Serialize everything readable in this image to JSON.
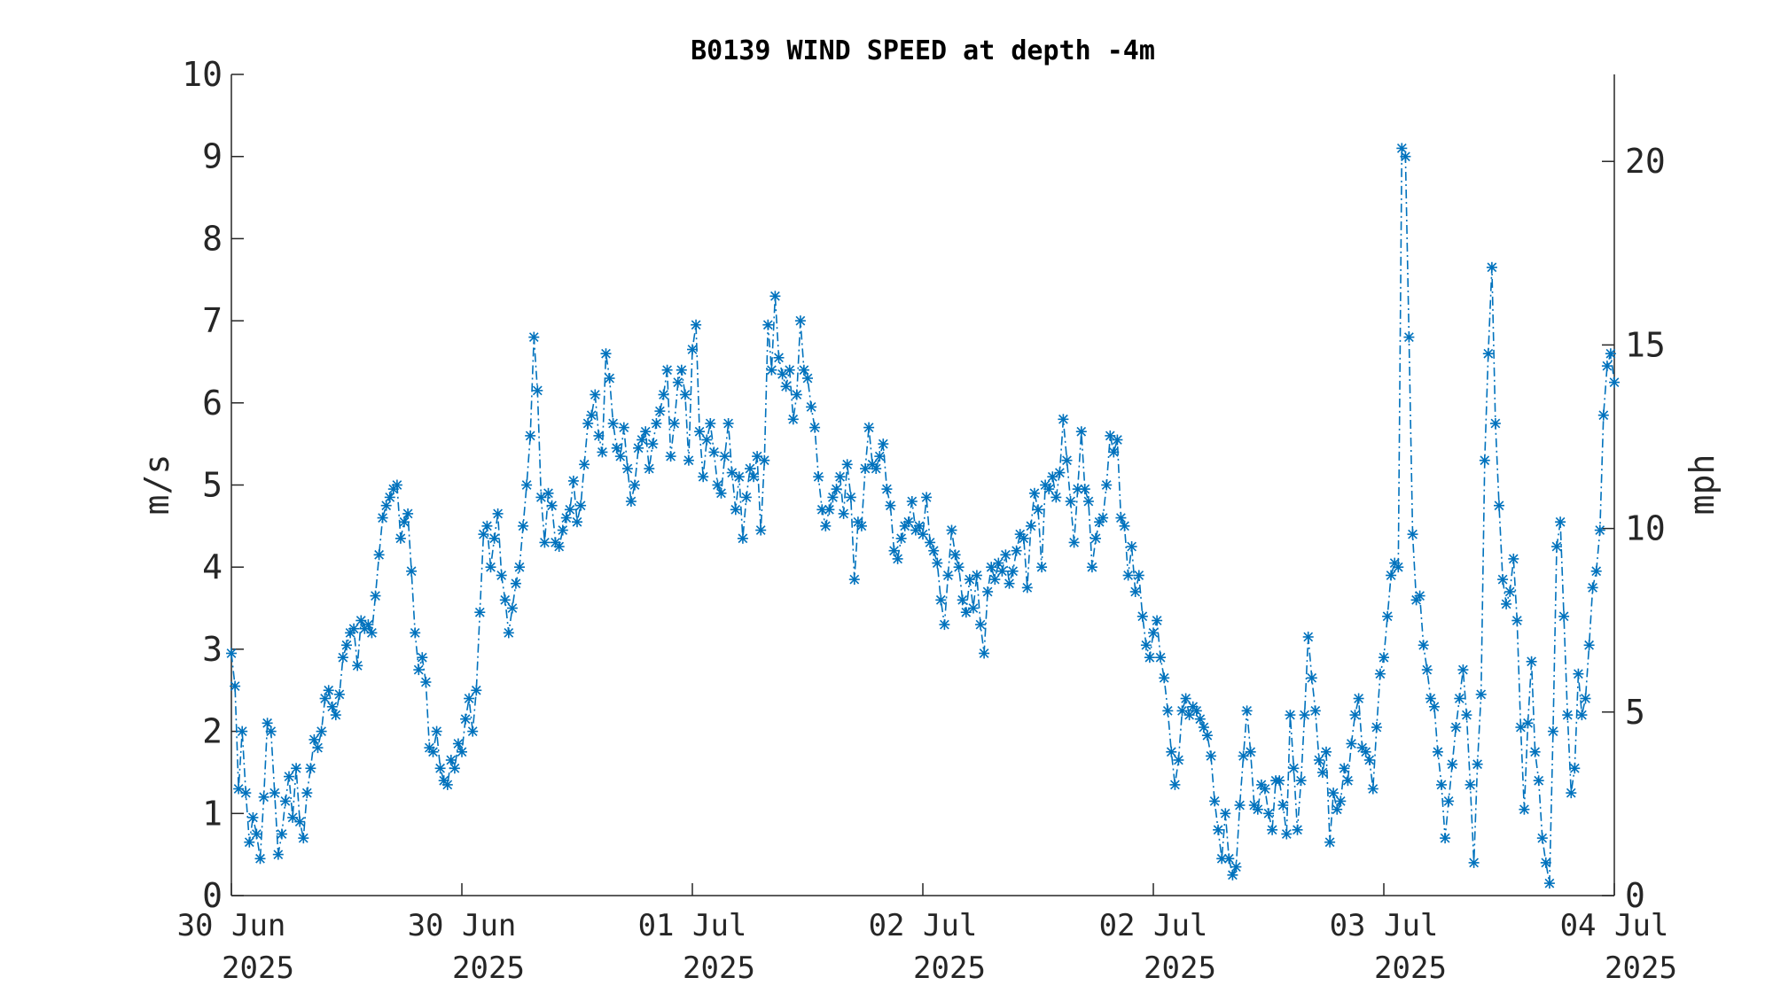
{
  "colors": {
    "series": "#0072BD",
    "axis": "#262626",
    "background": "#ffffff"
  },
  "chart_data": {
    "type": "line",
    "title": "B0139 WIND SPEED at depth -4m",
    "xlabel": "",
    "ylabel": "m/s",
    "y2label": "mph",
    "ylim": [
      0,
      10
    ],
    "y2lim": [
      0,
      22.37
    ],
    "yticks": [
      0,
      1,
      2,
      3,
      4,
      5,
      6,
      7,
      8,
      9,
      10
    ],
    "y2ticks": [
      0,
      5,
      10,
      15,
      20
    ],
    "xlim_days": [
      0,
      6
    ],
    "grid": false,
    "legend": "none",
    "marker": "asterisk",
    "line_style": "dash-dot",
    "x_ticks": [
      {
        "pos": 0,
        "line1": "30 Jun",
        "line2": "2025"
      },
      {
        "pos": 1,
        "line1": "30 Jun",
        "line2": "2025"
      },
      {
        "pos": 2,
        "line1": "01 Jul",
        "line2": "2025"
      },
      {
        "pos": 3,
        "line1": "02 Jul",
        "line2": "2025"
      },
      {
        "pos": 4,
        "line1": "02 Jul",
        "line2": "2025"
      },
      {
        "pos": 5,
        "line1": "03 Jul",
        "line2": "2025"
      },
      {
        "pos": 6,
        "line1": "04 Jul",
        "line2": "2025"
      }
    ],
    "series": [
      {
        "x_start": 0,
        "x_end": 6,
        "values": [
          2.95,
          2.55,
          1.3,
          2.0,
          1.25,
          0.65,
          0.95,
          0.75,
          0.45,
          1.2,
          2.1,
          2.0,
          1.25,
          0.5,
          0.75,
          1.15,
          1.45,
          0.95,
          1.55,
          0.9,
          0.7,
          1.25,
          1.55,
          1.9,
          1.8,
          2.0,
          2.4,
          2.5,
          2.3,
          2.2,
          2.45,
          2.9,
          3.05,
          3.2,
          3.25,
          2.8,
          3.35,
          3.25,
          3.3,
          3.2,
          3.65,
          4.15,
          4.6,
          4.75,
          4.85,
          4.95,
          5.0,
          4.35,
          4.55,
          4.65,
          3.95,
          3.2,
          2.75,
          2.9,
          2.6,
          1.8,
          1.75,
          2.0,
          1.55,
          1.4,
          1.35,
          1.65,
          1.55,
          1.85,
          1.75,
          2.15,
          2.4,
          2.0,
          2.5,
          3.45,
          4.4,
          4.5,
          4.0,
          4.35,
          4.65,
          3.9,
          3.6,
          3.2,
          3.5,
          3.8,
          4.0,
          4.5,
          5.0,
          5.6,
          6.8,
          6.15,
          4.85,
          4.3,
          4.9,
          4.75,
          4.3,
          4.25,
          4.45,
          4.6,
          4.7,
          5.05,
          4.55,
          4.75,
          5.25,
          5.75,
          5.85,
          6.1,
          5.6,
          5.4,
          6.6,
          6.3,
          5.75,
          5.45,
          5.35,
          5.7,
          5.2,
          4.8,
          5.0,
          5.45,
          5.55,
          5.65,
          5.2,
          5.5,
          5.75,
          5.9,
          6.1,
          6.4,
          5.35,
          5.75,
          6.25,
          6.4,
          6.1,
          5.3,
          6.65,
          6.95,
          5.65,
          5.1,
          5.55,
          5.75,
          5.4,
          5.0,
          4.9,
          5.35,
          5.75,
          5.15,
          4.7,
          5.1,
          4.35,
          4.85,
          5.2,
          5.1,
          5.35,
          4.45,
          5.3,
          6.95,
          6.4,
          7.3,
          6.55,
          6.35,
          6.2,
          6.4,
          5.8,
          6.1,
          7.0,
          6.4,
          6.3,
          5.95,
          5.7,
          5.1,
          4.7,
          4.5,
          4.7,
          4.85,
          4.95,
          5.1,
          4.65,
          5.25,
          4.85,
          3.85,
          4.55,
          4.5,
          5.2,
          5.7,
          5.25,
          5.2,
          5.35,
          5.5,
          4.95,
          4.75,
          4.2,
          4.1,
          4.35,
          4.5,
          4.55,
          4.8,
          4.45,
          4.5,
          4.4,
          4.85,
          4.3,
          4.2,
          4.05,
          3.6,
          3.3,
          3.9,
          4.45,
          4.15,
          4.0,
          3.6,
          3.45,
          3.85,
          3.5,
          3.9,
          3.3,
          2.95,
          3.7,
          4.0,
          3.85,
          4.05,
          3.95,
          4.15,
          3.8,
          3.95,
          4.2,
          4.4,
          4.35,
          3.75,
          4.5,
          4.9,
          4.7,
          4.0,
          5.0,
          4.95,
          5.1,
          4.85,
          5.15,
          5.8,
          5.3,
          4.8,
          4.3,
          4.95,
          5.65,
          4.95,
          4.8,
          4.0,
          4.35,
          4.55,
          4.6,
          5.0,
          5.6,
          5.4,
          5.55,
          4.6,
          4.5,
          3.9,
          4.25,
          3.7,
          3.9,
          3.4,
          3.05,
          2.9,
          3.2,
          3.35,
          2.9,
          2.65,
          2.25,
          1.75,
          1.35,
          1.65,
          2.25,
          2.4,
          2.2,
          2.3,
          2.25,
          2.15,
          2.05,
          1.95,
          1.7,
          1.15,
          0.8,
          0.45,
          1.0,
          0.45,
          0.25,
          0.35,
          1.1,
          1.7,
          2.25,
          1.75,
          1.1,
          1.05,
          1.35,
          1.3,
          1.0,
          0.8,
          1.4,
          1.4,
          1.1,
          0.75,
          2.2,
          1.55,
          0.8,
          1.4,
          2.2,
          3.15,
          2.65,
          2.25,
          1.65,
          1.5,
          1.75,
          0.65,
          1.25,
          1.05,
          1.15,
          1.55,
          1.4,
          1.85,
          2.2,
          2.4,
          1.8,
          1.75,
          1.65,
          1.3,
          2.05,
          2.7,
          2.9,
          3.4,
          3.9,
          4.05,
          4.0,
          9.1,
          9.0,
          6.8,
          4.4,
          3.6,
          3.65,
          3.05,
          2.75,
          2.4,
          2.3,
          1.75,
          1.35,
          0.7,
          1.15,
          1.6,
          2.05,
          2.4,
          2.75,
          2.2,
          1.35,
          0.4,
          1.6,
          2.45,
          5.3,
          6.6,
          7.65,
          5.75,
          4.75,
          3.85,
          3.55,
          3.7,
          4.1,
          3.35,
          2.05,
          1.05,
          2.1,
          2.85,
          1.75,
          1.4,
          0.7,
          0.4,
          0.15,
          2.0,
          4.25,
          4.55,
          3.4,
          2.2,
          1.25,
          1.55,
          2.7,
          2.2,
          2.4,
          3.05,
          3.75,
          3.95,
          4.45,
          5.85,
          6.45,
          6.6,
          6.25
        ]
      }
    ]
  }
}
